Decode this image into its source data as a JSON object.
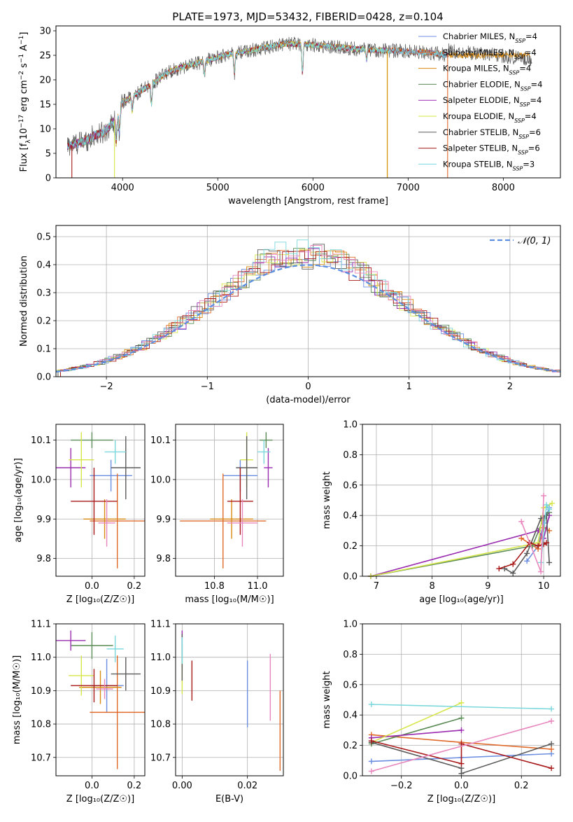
{
  "title": "PLATE=1973, MJD=53432, FIBERID=0428, z=0.104",
  "colors": {
    "chabrier_miles": "#6b8ee0",
    "salpeter_miles": "#e06a2a",
    "kroupa_miles": "#d88a10",
    "chabrier_elodie": "#5a8a55",
    "salpeter_elodie": "#9a2bb0",
    "kroupa_elodie": "#d6e64a",
    "chabrier_stelib": "#5a5a5a",
    "salpeter_stelib": "#a81818",
    "kroupa_stelib": "#7ad8dc",
    "pink": "#e887bd",
    "normal": "#5b8ee0"
  },
  "chart_data": [
    {
      "id": "spectrum",
      "type": "line",
      "xlabel": "wavelength [Angstrom, rest frame]",
      "ylabel_parts": [
        "Flux [f",
        "λ",
        "10",
        "−17",
        " erg cm",
        "−2",
        " s",
        "−1",
        " A",
        "−1",
        "]"
      ],
      "xlim": [
        3300,
        8600
      ],
      "ylim": [
        0,
        31
      ],
      "xticks": [
        4000,
        5000,
        6000,
        7000,
        8000
      ],
      "yticks": [
        0,
        5,
        10,
        15,
        20,
        25,
        30
      ],
      "grid": false,
      "legend_position": "top-right",
      "legend": [
        {
          "key": "chabrier_miles",
          "pre": "Chabrier MILES, N",
          "sub": "SSP",
          "post": "=4"
        },
        {
          "key": "salpeter_miles",
          "pre": "Salpeter MILES, N",
          "sub": "SSP",
          "post": "=4"
        },
        {
          "key": "kroupa_miles",
          "pre": "Kroupa MILES, N",
          "sub": "SSP",
          "post": "=4"
        },
        {
          "key": "chabrier_elodie",
          "pre": "Chabrier ELODIE, N",
          "sub": "SSP",
          "post": "=4"
        },
        {
          "key": "salpeter_elodie",
          "pre": "Salpeter ELODIE, N",
          "sub": "SSP",
          "post": "=4"
        },
        {
          "key": "kroupa_elodie",
          "pre": "Kroupa ELODIE, N",
          "sub": "SSP",
          "post": "=4"
        },
        {
          "key": "chabrier_stelib",
          "pre": "Chabrier STELIB, N",
          "sub": "SSP",
          "post": "=6"
        },
        {
          "key": "salpeter_stelib",
          "pre": "Salpeter STELIB, N",
          "sub": "SSP",
          "post": "=6"
        },
        {
          "key": "kroupa_stelib",
          "pre": "Kroupa STELIB, N",
          "sub": "SSP",
          "post": "=3"
        }
      ],
      "continuum": [
        [
          3420,
          6.5
        ],
        [
          3600,
          7.5
        ],
        [
          3700,
          8.6
        ],
        [
          3800,
          9.2
        ],
        [
          3850,
          10.2
        ],
        [
          3950,
          12.5
        ],
        [
          4000,
          15.5
        ],
        [
          4100,
          16.5
        ],
        [
          4200,
          17.8
        ],
        [
          4300,
          19.0
        ],
        [
          4400,
          20.5
        ],
        [
          4500,
          21.8
        ],
        [
          4700,
          23.0
        ],
        [
          4900,
          24.0
        ],
        [
          5100,
          25.2
        ],
        [
          5300,
          25.8
        ],
        [
          5500,
          26.6
        ],
        [
          5700,
          27.3
        ],
        [
          5900,
          27.3
        ],
        [
          6100,
          26.9
        ],
        [
          6300,
          26.6
        ],
        [
          6500,
          26.2
        ],
        [
          6700,
          26.0
        ],
        [
          6900,
          25.9
        ],
        [
          7100,
          25.7
        ],
        [
          7300,
          25.4
        ],
        [
          7420,
          25.0
        ]
      ],
      "absorption_dips": [
        [
          3934,
          5
        ],
        [
          3968,
          4
        ],
        [
          4102,
          3
        ],
        [
          4304,
          4
        ],
        [
          4861,
          2.5
        ],
        [
          5175,
          4
        ],
        [
          5890,
          6
        ],
        [
          6563,
          2
        ]
      ],
      "spikes": [
        [
          3467,
          0
        ],
        [
          3915,
          0
        ],
        [
          6780,
          0
        ],
        [
          7415,
          0
        ]
      ]
    },
    {
      "id": "residuals",
      "type": "histogram",
      "xlabel": "(data-model)/error",
      "ylabel": "Normed distribution",
      "xlim": [
        -2.5,
        2.5
      ],
      "ylim": [
        0,
        0.54
      ],
      "xticks": [
        -2,
        -1,
        0,
        1,
        2
      ],
      "yticks": [
        0.0,
        0.1,
        0.2,
        0.3,
        0.4,
        0.5
      ],
      "grid": true,
      "legend_position": "top-right",
      "legend_label": "𝒩(0, 1)",
      "bin_width": 0.11
    },
    {
      "id": "age_vs_Z",
      "type": "scatter",
      "xlabel": "Z [log₁₀(Z/Z☉)]",
      "ylabel": "age  [log₁₀(age/yr)]",
      "xlim": [
        -0.17,
        0.25
      ],
      "ylim": [
        9.755,
        10.14
      ],
      "xticks": [
        0.0,
        0.2
      ],
      "xtick_labels": [
        "0.0",
        "0.2"
      ],
      "yticks": [
        9.8,
        9.9,
        10.0,
        10.1
      ],
      "ytick_labels": [
        "9.8",
        "9.9",
        "10.0",
        "10.1"
      ],
      "grid": true,
      "points": [
        {
          "key": "chabrier_miles",
          "x": 0.09,
          "y": 10.01,
          "xerr": 0.1,
          "yerr": 0.04
        },
        {
          "key": "salpeter_miles",
          "x": 0.12,
          "y": 9.895,
          "xerr": 0.13,
          "yerr": 0.12
        },
        {
          "key": "kroupa_miles",
          "x": 0.06,
          "y": 9.9,
          "xerr": 0.1,
          "yerr": 0.05
        },
        {
          "key": "chabrier_elodie",
          "x": 0.0,
          "y": 10.1,
          "xerr": 0.1,
          "yerr": 0.02
        },
        {
          "key": "salpeter_elodie",
          "x": -0.1,
          "y": 10.03,
          "xerr": 0.07,
          "yerr": 0.05
        },
        {
          "key": "kroupa_elodie",
          "x": -0.05,
          "y": 10.05,
          "xerr": 0.06,
          "yerr": 0.07
        },
        {
          "key": "chabrier_stelib",
          "x": 0.16,
          "y": 10.03,
          "xerr": 0.07,
          "yerr": 0.08
        },
        {
          "key": "salpeter_stelib",
          "x": 0.01,
          "y": 9.945,
          "xerr": 0.11,
          "yerr": 0.085
        },
        {
          "key": "kroupa_stelib",
          "x": 0.11,
          "y": 10.07,
          "xerr": 0.05,
          "yerr": 0.03
        },
        {
          "key": "pink",
          "x": 0.07,
          "y": 9.89,
          "xerr": 0.04,
          "yerr": 0.06
        }
      ]
    },
    {
      "id": "age_vs_mass",
      "type": "scatter",
      "xlabel": "mass [log₁₀(M/M☉)]",
      "ylabel": "",
      "xlim": [
        10.62,
        11.12
      ],
      "ylim": [
        9.755,
        10.14
      ],
      "xticks": [
        10.8,
        11.0
      ],
      "xtick_labels": [
        "10.8",
        "11.0"
      ],
      "yticks": [
        9.8,
        9.9,
        10.0,
        10.1
      ],
      "ytick_labels": [
        "9.8",
        "9.9",
        "10.0",
        "10.1"
      ],
      "grid": true,
      "points": [
        {
          "key": "chabrier_miles",
          "x": 10.92,
          "y": 10.01,
          "xerr": 0.08,
          "yerr": 0.04
        },
        {
          "key": "salpeter_miles",
          "x": 10.84,
          "y": 9.895,
          "xerr": 0.2,
          "yerr": 0.12
        },
        {
          "key": "kroupa_miles",
          "x": 10.88,
          "y": 9.9,
          "xerr": 0.1,
          "yerr": 0.05
        },
        {
          "key": "chabrier_elodie",
          "x": 11.04,
          "y": 10.1,
          "xerr": 0.03,
          "yerr": 0.02
        },
        {
          "key": "salpeter_elodie",
          "x": 11.05,
          "y": 10.03,
          "xerr": 0.02,
          "yerr": 0.05
        },
        {
          "key": "kroupa_elodie",
          "x": 10.95,
          "y": 10.05,
          "xerr": 0.03,
          "yerr": 0.07
        },
        {
          "key": "chabrier_stelib",
          "x": 10.95,
          "y": 10.03,
          "xerr": 0.05,
          "yerr": 0.08
        },
        {
          "key": "salpeter_stelib",
          "x": 10.92,
          "y": 9.945,
          "xerr": 0.06,
          "yerr": 0.085
        },
        {
          "key": "kroupa_stelib",
          "x": 11.03,
          "y": 10.07,
          "xerr": 0.03,
          "yerr": 0.03
        },
        {
          "key": "pink",
          "x": 10.93,
          "y": 9.89,
          "xerr": 0.07,
          "yerr": 0.06
        }
      ]
    },
    {
      "id": "mass_weight_vs_age",
      "type": "line",
      "xlabel": "age  [log₁₀(age/yr)]",
      "ylabel": "mass weight",
      "xlim": [
        6.75,
        10.3
      ],
      "ylim": [
        0,
        1.0
      ],
      "xticks": [
        7,
        8,
        9,
        10
      ],
      "xtick_labels": [
        "7",
        "8",
        "9",
        "10"
      ],
      "yticks": [
        0.0,
        0.2,
        0.4,
        0.6,
        0.8,
        1.0
      ],
      "ytick_labels": [
        "0.0",
        "0.2",
        "0.4",
        "0.6",
        "0.8",
        "1.0"
      ],
      "grid": true,
      "series": [
        {
          "key": "chabrier_miles",
          "x": [
            9.7,
            9.9,
            10.0,
            10.1
          ],
          "y": [
            0.1,
            0.2,
            0.35,
            0.45
          ]
        },
        {
          "key": "salpeter_miles",
          "x": [
            9.6,
            9.9,
            10.0,
            10.1
          ],
          "y": [
            0.25,
            0.18,
            0.32,
            0.3
          ]
        },
        {
          "key": "chabrier_elodie",
          "x": [
            6.9,
            9.8,
            10.0,
            10.1
          ],
          "y": [
            0.0,
            0.2,
            0.38,
            0.42
          ]
        },
        {
          "key": "salpeter_elodie",
          "x": [
            6.9,
            9.9,
            10.0,
            10.1
          ],
          "y": [
            0.0,
            0.3,
            0.25,
            0.4
          ]
        },
        {
          "key": "kroupa_elodie",
          "x": [
            6.9,
            9.9,
            10.0,
            10.15
          ],
          "y": [
            0.0,
            0.22,
            0.45,
            0.48
          ]
        },
        {
          "key": "chabrier_stelib",
          "x": [
            9.3,
            9.45,
            9.7,
            9.95,
            10.05,
            10.1
          ],
          "y": [
            0.05,
            0.02,
            0.15,
            0.38,
            0.4,
            0.09
          ]
        },
        {
          "key": "salpeter_stelib",
          "x": [
            9.2,
            9.45,
            9.75,
            9.9,
            10.0,
            10.05
          ],
          "y": [
            0.05,
            0.08,
            0.22,
            0.2,
            0.21,
            0.22
          ]
        },
        {
          "key": "kroupa_stelib",
          "x": [
            9.95,
            10.05,
            10.1
          ],
          "y": [
            0.09,
            0.47,
            0.44
          ]
        },
        {
          "key": "pink",
          "x": [
            9.6,
            9.95,
            10.0
          ],
          "y": [
            0.36,
            0.03,
            0.53
          ]
        }
      ]
    },
    {
      "id": "mass_vs_Z",
      "type": "scatter",
      "xlabel": "Z [log₁₀(Z/Z☉)]",
      "ylabel": "mass [log₁₀(M/M☉)]",
      "xlim": [
        -0.17,
        0.25
      ],
      "ylim": [
        10.645,
        11.1
      ],
      "xticks": [
        0.0,
        0.2
      ],
      "xtick_labels": [
        "0.0",
        "0.2"
      ],
      "yticks": [
        10.7,
        10.8,
        10.9,
        11.0,
        11.1
      ],
      "ytick_labels": [
        "10.7",
        "10.8",
        "10.9",
        "11.0",
        "11.1"
      ],
      "grid": true,
      "points": [
        {
          "key": "chabrier_miles",
          "x": 0.07,
          "y": 10.915,
          "xerr": 0.08,
          "yerr": 0.08
        },
        {
          "key": "salpeter_miles",
          "x": 0.12,
          "y": 10.835,
          "xerr": 0.13,
          "yerr": 0.17
        },
        {
          "key": "kroupa_miles",
          "x": 0.04,
          "y": 10.91,
          "xerr": 0.1,
          "yerr": 0.05
        },
        {
          "key": "chabrier_elodie",
          "x": 0.0,
          "y": 11.035,
          "xerr": 0.1,
          "yerr": 0.04
        },
        {
          "key": "salpeter_elodie",
          "x": -0.1,
          "y": 11.05,
          "xerr": 0.07,
          "yerr": 0.03
        },
        {
          "key": "kroupa_elodie",
          "x": -0.05,
          "y": 10.945,
          "xerr": 0.06,
          "yerr": 0.06
        },
        {
          "key": "chabrier_stelib",
          "x": 0.16,
          "y": 10.95,
          "xerr": 0.07,
          "yerr": 0.05
        },
        {
          "key": "salpeter_stelib",
          "x": 0.01,
          "y": 10.915,
          "xerr": 0.11,
          "yerr": 0.05
        },
        {
          "key": "kroupa_stelib",
          "x": 0.11,
          "y": 11.025,
          "xerr": 0.04,
          "yerr": 0.04
        },
        {
          "key": "pink",
          "x": 0.06,
          "y": 10.905,
          "xerr": 0.04,
          "yerr": 0.03
        }
      ]
    },
    {
      "id": "mass_vs_ebv",
      "type": "scatter",
      "xlabel": "E(B-V)",
      "ylabel": "",
      "xlim": [
        -0.002,
        0.031
      ],
      "ylim": [
        10.645,
        11.1
      ],
      "xticks": [
        0.0,
        0.02
      ],
      "xtick_labels": [
        "0.00",
        "0.02"
      ],
      "yticks": [
        10.7,
        10.8,
        10.9,
        11.0,
        11.1
      ],
      "ytick_labels": [
        "10.7",
        "10.8",
        "10.9",
        "11.0",
        "11.1"
      ],
      "grid": true,
      "points": [
        {
          "key": "chabrier_miles",
          "x": 0.02,
          "y": 10.89,
          "xerr": 0,
          "yerr": 0.1
        },
        {
          "key": "salpeter_miles",
          "x": 0.03,
          "y": 10.78,
          "xerr": 0,
          "yerr": 0.12
        },
        {
          "key": "chabrier_elodie",
          "x": 0.0,
          "y": 11.0,
          "xerr": 0,
          "yerr": 0.04
        },
        {
          "key": "salpeter_elodie",
          "x": 0.0,
          "y": 11.04,
          "xerr": 0,
          "yerr": 0.04
        },
        {
          "key": "kroupa_elodie",
          "x": 0.0,
          "y": 10.95,
          "xerr": 0,
          "yerr": 0.06
        },
        {
          "key": "chabrier_stelib",
          "x": 0.0,
          "y": 11.0,
          "xerr": 0,
          "yerr": 0.07
        },
        {
          "key": "salpeter_stelib",
          "x": 0.003,
          "y": 10.93,
          "xerr": 0,
          "yerr": 0.06
        },
        {
          "key": "kroupa_stelib",
          "x": 0.0,
          "y": 11.02,
          "xerr": 0,
          "yerr": 0.04
        },
        {
          "key": "pink",
          "x": 0.027,
          "y": 10.91,
          "xerr": 0,
          "yerr": 0.1
        }
      ]
    },
    {
      "id": "mass_weight_vs_Z",
      "type": "line",
      "xlabel": "Z [log₁₀(Z/Z☉)]",
      "ylabel": "mass weight",
      "xlim": [
        -0.33,
        0.33
      ],
      "ylim": [
        0,
        1.0
      ],
      "xticks": [
        -0.2,
        0.0,
        0.2
      ],
      "xtick_labels": [
        "−0.2",
        "0.0",
        "0.2"
      ],
      "yticks": [
        0.0,
        0.2,
        0.4,
        0.6,
        0.8,
        1.0
      ],
      "ytick_labels": [
        "0.0",
        "0.2",
        "0.4",
        "0.6",
        "0.8",
        "1.0"
      ],
      "grid": true,
      "series": [
        {
          "key": "chabrier_miles",
          "x": [
            -0.3,
            0.0,
            0.3
          ],
          "y": [
            0.095,
            0.12,
            0.145
          ]
        },
        {
          "key": "salpeter_miles",
          "x": [
            -0.3,
            0.0,
            0.3
          ],
          "y": [
            0.27,
            0.22,
            0.175
          ]
        },
        {
          "key": "chabrier_elodie",
          "x": [
            -0.3,
            0.0
          ],
          "y": [
            0.21,
            0.38
          ]
        },
        {
          "key": "salpeter_elodie",
          "x": [
            -0.3,
            0.0
          ],
          "y": [
            0.25,
            0.3
          ]
        },
        {
          "key": "kroupa_elodie",
          "x": [
            -0.3,
            0.0
          ],
          "y": [
            0.22,
            0.48
          ]
        },
        {
          "key": "chabrier_stelib",
          "x": [
            -0.3,
            0.0,
            0.0,
            0.3
          ],
          "y": [
            0.22,
            0.05,
            0.015,
            0.21
          ]
        },
        {
          "key": "salpeter_stelib",
          "x": [
            -0.3,
            0.0,
            0.0,
            0.3
          ],
          "y": [
            0.23,
            0.08,
            0.21,
            0.05
          ]
        },
        {
          "key": "kroupa_stelib",
          "x": [
            -0.3,
            0.3
          ],
          "y": [
            0.47,
            0.44
          ]
        },
        {
          "key": "pink",
          "x": [
            -0.3,
            0.3
          ],
          "y": [
            0.03,
            0.36
          ]
        }
      ]
    }
  ]
}
